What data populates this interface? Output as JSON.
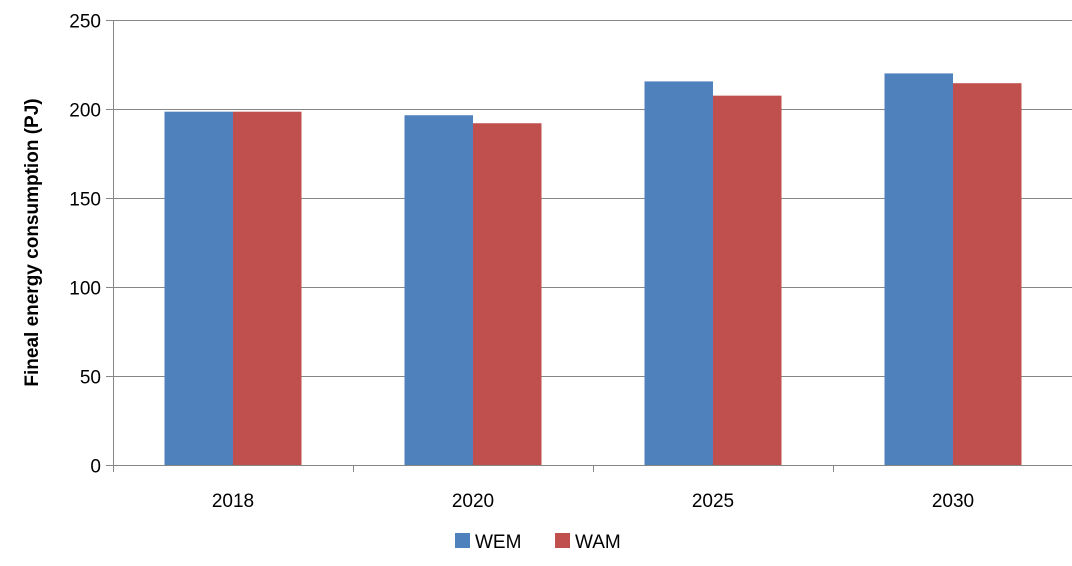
{
  "chart_data": {
    "type": "bar",
    "title": "",
    "xlabel": "",
    "ylabel": "Fineal energy consumption (PJ)",
    "categories": [
      "2018",
      "2020",
      "2025",
      "2030"
    ],
    "series": [
      {
        "name": "WEM",
        "values": [
          198.5,
          196.5,
          215.5,
          220
        ],
        "color": "#4f81bd"
      },
      {
        "name": "WAM",
        "values": [
          198.5,
          192,
          207.5,
          214.5
        ],
        "color": "#c0504d"
      }
    ],
    "ylim": [
      0,
      250
    ],
    "yticks": [
      0,
      50,
      100,
      150,
      200,
      250
    ],
    "grid": true,
    "legend_position": "bottom-center"
  }
}
